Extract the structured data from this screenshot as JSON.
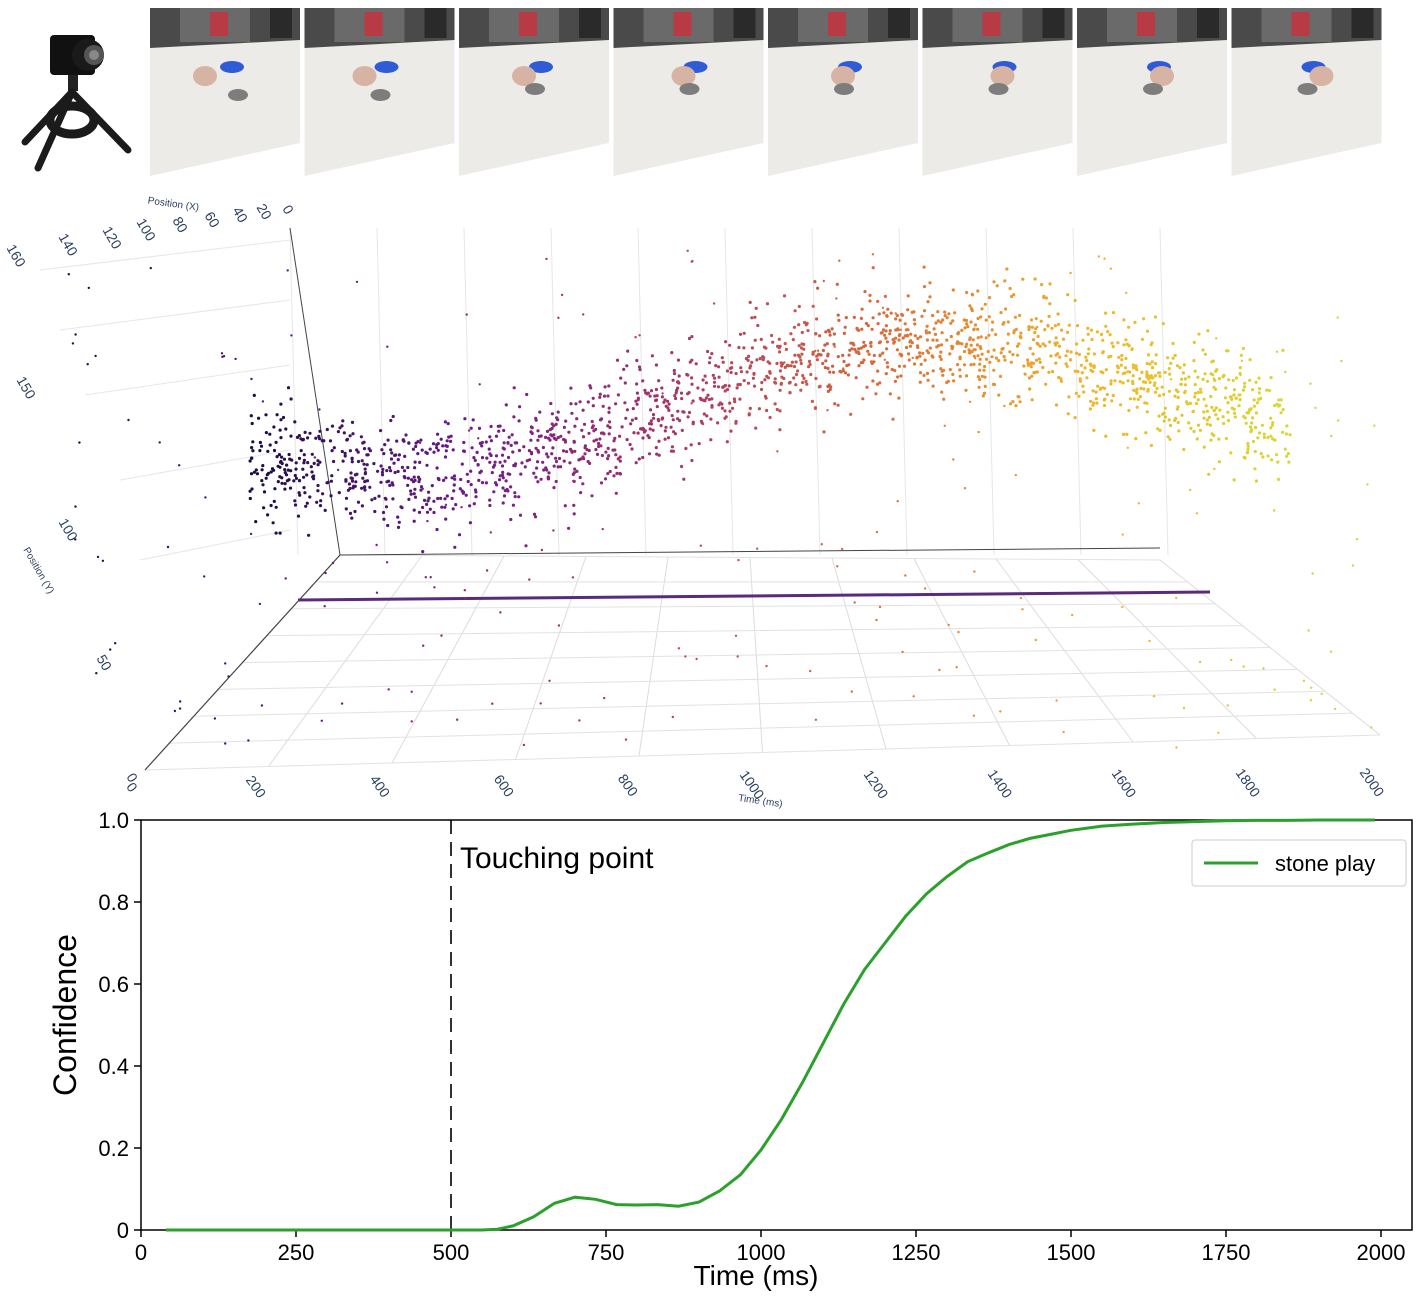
{
  "frames": {
    "count": 8,
    "icons": [
      "camera-on-tripod-icon"
    ]
  },
  "scatter3d": {
    "x_axis_label": "Time (ms)",
    "y_axis_label": "Position (Y)",
    "z_axis_label": "Position (X)",
    "x_ticks": [
      "0",
      "200",
      "400",
      "600",
      "800",
      "1000",
      "1200",
      "1400",
      "1600",
      "1800",
      "2000"
    ],
    "y_ticks": [
      "0",
      "50",
      "100",
      "150"
    ],
    "z_ticks": [
      "160",
      "140",
      "120",
      "100",
      "80",
      "60",
      "40",
      "20",
      "0"
    ],
    "colorscale": [
      "#1b0c41",
      "#6a1b8a",
      "#a2356b",
      "#d86a3c",
      "#f0b429",
      "#d8d836"
    ]
  },
  "chart_data": {
    "type": "line",
    "title": "",
    "xlabel": "Time (ms)",
    "ylabel": "Confidence",
    "xlim": [
      0,
      2050
    ],
    "ylim": [
      0,
      1.0
    ],
    "x_ticks": [
      "0",
      "250",
      "500",
      "750",
      "1000",
      "1250",
      "1500",
      "1750",
      "2000"
    ],
    "y_ticks": [
      "0",
      "0.2",
      "0.4",
      "0.6",
      "0.8",
      "1.0"
    ],
    "legend": "top-right",
    "annotation": {
      "text": "Touching point",
      "x": 500
    },
    "series": [
      {
        "name": "stone play",
        "color": "#2ca02c",
        "x": [
          40,
          100,
          200,
          300,
          400,
          500,
          550,
          575,
          600,
          633,
          667,
          700,
          733,
          767,
          800,
          833,
          867,
          900,
          933,
          967,
          1000,
          1033,
          1067,
          1100,
          1133,
          1167,
          1200,
          1233,
          1267,
          1300,
          1333,
          1367,
          1400,
          1433,
          1467,
          1500,
          1550,
          1600,
          1650,
          1700,
          1750,
          1800,
          1850,
          1900,
          1950,
          1990
        ],
        "y": [
          0,
          0,
          0,
          0,
          0,
          0,
          0.0,
          0.002,
          0.01,
          0.032,
          0.065,
          0.08,
          0.075,
          0.062,
          0.061,
          0.062,
          0.058,
          0.068,
          0.095,
          0.135,
          0.195,
          0.27,
          0.36,
          0.455,
          0.55,
          0.635,
          0.7,
          0.765,
          0.82,
          0.862,
          0.898,
          0.92,
          0.94,
          0.955,
          0.965,
          0.975,
          0.985,
          0.99,
          0.994,
          0.996,
          0.998,
          0.999,
          0.999,
          1.0,
          1.0,
          1.0
        ]
      }
    ]
  }
}
